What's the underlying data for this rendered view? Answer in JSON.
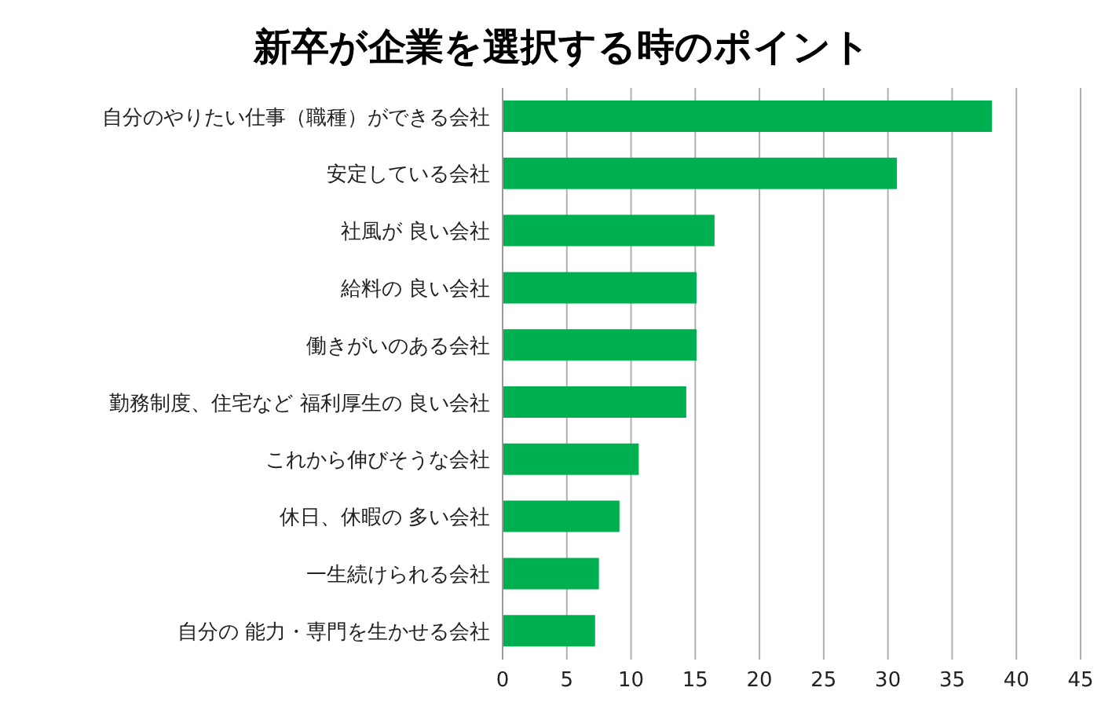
{
  "chart_data": {
    "type": "bar",
    "orientation": "horizontal",
    "title": "新卒が企業を選択する時のポイント",
    "categories": [
      "自分のやりたい仕事（職種）ができる会社",
      "安定している会社",
      "社風が 良い会社",
      "給料の 良い会社",
      "働きがいのある会社",
      "勤務制度、住宅など 福利厚生の 良い会社",
      "これから伸びそうな会社",
      "休日、休暇の 多い会社",
      "一生続けられる会社",
      "自分の 能力・専門を生かせる会社"
    ],
    "values": [
      38.1,
      30.7,
      16.5,
      15.1,
      15.1,
      14.3,
      10.6,
      9.1,
      7.5,
      7.2
    ],
    "color": "#00b050",
    "xlim": [
      0,
      45
    ],
    "xticks": [
      0,
      5,
      10,
      15,
      20,
      25,
      30,
      35,
      40,
      45
    ],
    "grid": "x",
    "legend": false
  }
}
